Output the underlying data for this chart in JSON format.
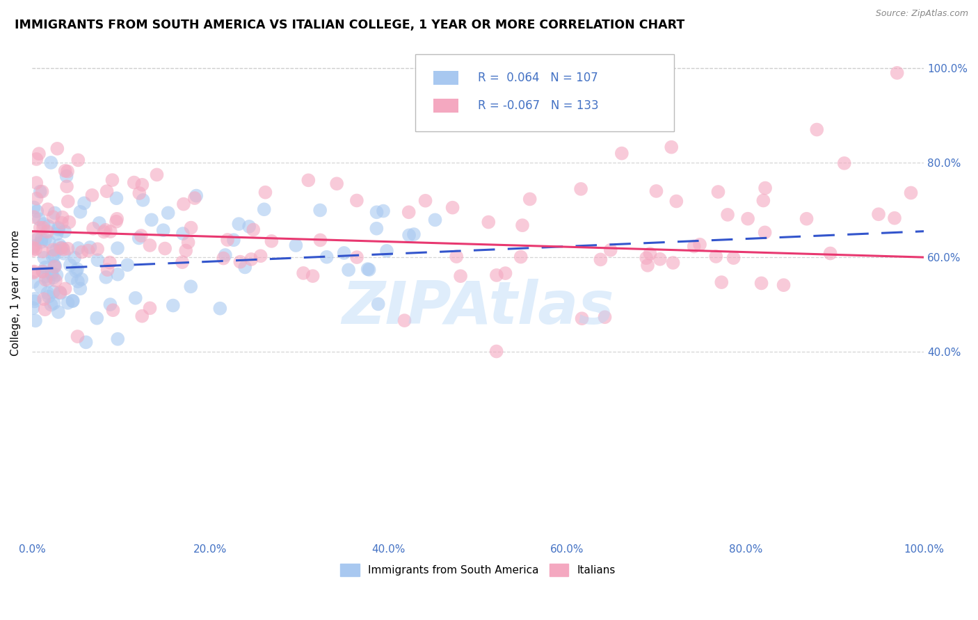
{
  "title": "IMMIGRANTS FROM SOUTH AMERICA VS ITALIAN COLLEGE, 1 YEAR OR MORE CORRELATION CHART",
  "source": "Source: ZipAtlas.com",
  "ylabel": "College, 1 year or more",
  "watermark": "ZIPAtlas",
  "series1_label": "Immigrants from South America",
  "series2_label": "Italians",
  "series1_R": 0.064,
  "series1_N": 107,
  "series2_R": -0.067,
  "series2_N": 133,
  "series1_color": "#a8c8f0",
  "series2_color": "#f4a8c0",
  "series1_line_color": "#3355cc",
  "series2_line_color": "#e83870",
  "xlim": [
    0.0,
    1.0
  ],
  "ylim": [
    0.0,
    1.05
  ],
  "xticks": [
    0.0,
    0.2,
    0.4,
    0.6,
    0.8,
    1.0
  ],
  "yticks": [
    0.4,
    0.6,
    0.8,
    1.0
  ],
  "xticklabels": [
    "0.0%",
    "20.0%",
    "40.0%",
    "60.0%",
    "80.0%",
    "100.0%"
  ],
  "yticklabels": [
    "40.0%",
    "60.0%",
    "80.0%",
    "100.0%"
  ],
  "tick_color": "#4472c4",
  "background_color": "#ffffff",
  "grid_color": "#cccccc",
  "blue_line_start_y": 0.575,
  "blue_line_end_y": 0.655,
  "pink_line_start_y": 0.655,
  "pink_line_end_y": 0.6
}
